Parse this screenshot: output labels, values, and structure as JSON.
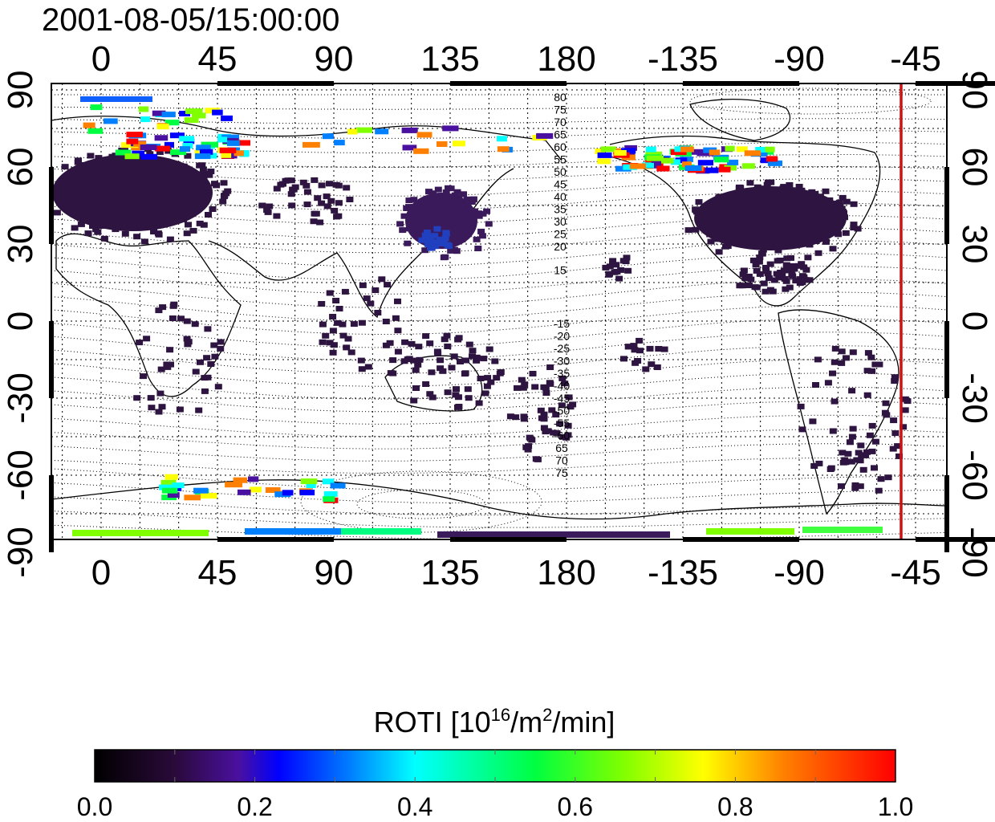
{
  "title": "2001-08-05/15:00:00",
  "map": {
    "x_ticks": [
      "0",
      "45",
      "90",
      "135",
      "180",
      "-135",
      "-90",
      "-45"
    ],
    "y_ticks": [
      "90",
      "60",
      "30",
      "0",
      "-30",
      "-60",
      "-90"
    ],
    "contour_labels_north": [
      "80",
      "75",
      "70",
      "65",
      "60",
      "55",
      "50",
      "45",
      "40",
      "35",
      "30",
      "25",
      "20",
      "15"
    ],
    "contour_labels_south": [
      "-15",
      "-20",
      "-25",
      "-30",
      "-35",
      "-40",
      "-45",
      "-50",
      "-55",
      "-60",
      "65",
      "70",
      "75"
    ],
    "red_line_longitude": "-45",
    "red_line_color": "#d01010"
  },
  "colorbar": {
    "label_main": "ROTI  [10",
    "label_sup1": "16",
    "label_mid": "/m",
    "label_sup2": "2",
    "label_end": "/min]",
    "ticks": [
      "0.0",
      "0.2",
      "0.4",
      "0.6",
      "0.8",
      "1.0"
    ],
    "colormap": "black-purple-blue-cyan-green-yellow-red"
  }
}
